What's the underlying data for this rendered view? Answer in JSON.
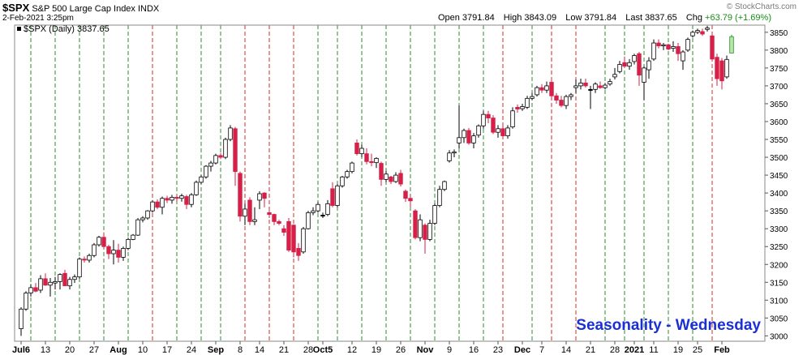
{
  "header": {
    "symbol": "$SPX",
    "description": "S&P 500 Large Cap Index INDX",
    "datetime": "2-Feb-2021 3:25pm",
    "open_label": "Open",
    "open": "3791.84",
    "high_label": "High",
    "high": "3843.09",
    "low_label": "Low",
    "low": "3791.84",
    "last_label": "Last",
    "last": "3837.65",
    "chg_label": "Chg",
    "chg": "+63.79 (+1.69%)",
    "chg_color": "#1a8c1a",
    "watermark": "© StockCharts.com"
  },
  "legend": {
    "text": "$SPX (Daily) 3837.65"
  },
  "chart_data": {
    "type": "candlestick",
    "title": "Seasonality - Wednesday",
    "title_color": "#1a2fd6",
    "y_ticks": [
      3000,
      3050,
      3100,
      3150,
      3200,
      3250,
      3300,
      3350,
      3400,
      3450,
      3500,
      3550,
      3600,
      3650,
      3700,
      3750,
      3800,
      3850
    ],
    "ylim": [
      2985,
      3870
    ],
    "y_axis_side": "right",
    "x_tick_labels": [
      {
        "day": 0,
        "label": "Jul6",
        "bold": true
      },
      {
        "day": 5,
        "label": "13"
      },
      {
        "day": 10,
        "label": "20"
      },
      {
        "day": 15,
        "label": "27"
      },
      {
        "day": 20,
        "label": "Aug",
        "bold": true
      },
      {
        "day": 25,
        "label": "10"
      },
      {
        "day": 30,
        "label": "17"
      },
      {
        "day": 35,
        "label": "24"
      },
      {
        "day": 40,
        "label": "Sep",
        "bold": true
      },
      {
        "day": 45,
        "label": "8"
      },
      {
        "day": 49,
        "label": "14"
      },
      {
        "day": 54,
        "label": "21"
      },
      {
        "day": 59,
        "label": "28"
      },
      {
        "day": 62,
        "label": "Oct5",
        "bold": true
      },
      {
        "day": 68,
        "label": "12"
      },
      {
        "day": 73,
        "label": "19"
      },
      {
        "day": 78,
        "label": "26"
      },
      {
        "day": 83,
        "label": "Nov",
        "bold": true
      },
      {
        "day": 88,
        "label": "9"
      },
      {
        "day": 93,
        "label": "16"
      },
      {
        "day": 98,
        "label": "23"
      },
      {
        "day": 103,
        "label": "Dec",
        "bold": true
      },
      {
        "day": 107,
        "label": "7"
      },
      {
        "day": 112,
        "label": "14"
      },
      {
        "day": 117,
        "label": "21"
      },
      {
        "day": 122,
        "label": "28"
      },
      {
        "day": 126,
        "label": "2021",
        "bold": true
      },
      {
        "day": 130,
        "label": "11"
      },
      {
        "day": 135,
        "label": "19"
      },
      {
        "day": 139,
        "label": "25"
      },
      {
        "day": 144,
        "label": "Feb",
        "bold": true
      }
    ],
    "green_wednesdays": [
      2,
      7,
      12,
      17,
      22,
      32,
      37,
      41,
      61,
      65,
      70,
      75,
      80,
      85,
      90,
      95,
      105,
      120,
      124,
      128,
      133,
      138
    ],
    "red_wednesdays": [
      27,
      46,
      51,
      56,
      99,
      109,
      114,
      142
    ],
    "candles": [
      {
        "o": 3020,
        "h": 3080,
        "l": 3000,
        "c": 3075
      },
      {
        "o": 3075,
        "h": 3125,
        "l": 3070,
        "c": 3120
      },
      {
        "o": 3120,
        "h": 3145,
        "l": 3110,
        "c": 3135
      },
      {
        "o": 3135,
        "h": 3148,
        "l": 3122,
        "c": 3125
      },
      {
        "o": 3128,
        "h": 3170,
        "l": 3120,
        "c": 3160
      },
      {
        "o": 3160,
        "h": 3175,
        "l": 3140,
        "c": 3142
      },
      {
        "o": 3142,
        "h": 3162,
        "l": 3110,
        "c": 3150
      },
      {
        "o": 3148,
        "h": 3165,
        "l": 3130,
        "c": 3152
      },
      {
        "o": 3152,
        "h": 3175,
        "l": 3130,
        "c": 3172
      },
      {
        "o": 3175,
        "h": 3185,
        "l": 3140,
        "c": 3140
      },
      {
        "o": 3140,
        "h": 3165,
        "l": 3130,
        "c": 3158
      },
      {
        "o": 3158,
        "h": 3172,
        "l": 3148,
        "c": 3165
      },
      {
        "o": 3165,
        "h": 3220,
        "l": 3160,
        "c": 3215
      },
      {
        "o": 3215,
        "h": 3222,
        "l": 3205,
        "c": 3212
      },
      {
        "o": 3212,
        "h": 3230,
        "l": 3205,
        "c": 3225
      },
      {
        "o": 3225,
        "h": 3260,
        "l": 3220,
        "c": 3255
      },
      {
        "o": 3255,
        "h": 3280,
        "l": 3250,
        "c": 3276
      },
      {
        "o": 3276,
        "h": 3290,
        "l": 3245,
        "c": 3250
      },
      {
        "o": 3250,
        "h": 3255,
        "l": 3215,
        "c": 3230
      },
      {
        "o": 3230,
        "h": 3268,
        "l": 3200,
        "c": 3240
      },
      {
        "o": 3240,
        "h": 3258,
        "l": 3205,
        "c": 3220
      },
      {
        "o": 3220,
        "h": 3250,
        "l": 3210,
        "c": 3245
      },
      {
        "o": 3245,
        "h": 3275,
        "l": 3240,
        "c": 3270
      },
      {
        "o": 3270,
        "h": 3285,
        "l": 3268,
        "c": 3282
      },
      {
        "o": 3282,
        "h": 3330,
        "l": 3280,
        "c": 3325
      },
      {
        "o": 3325,
        "h": 3335,
        "l": 3318,
        "c": 3330
      },
      {
        "o": 3330,
        "h": 3352,
        "l": 3325,
        "c": 3350
      },
      {
        "o": 3350,
        "h": 3380,
        "l": 3345,
        "c": 3375
      },
      {
        "o": 3375,
        "h": 3382,
        "l": 3355,
        "c": 3360
      },
      {
        "o": 3360,
        "h": 3390,
        "l": 3340,
        "c": 3385
      },
      {
        "o": 3385,
        "h": 3392,
        "l": 3372,
        "c": 3380
      },
      {
        "o": 3380,
        "h": 3395,
        "l": 3370,
        "c": 3388
      },
      {
        "o": 3388,
        "h": 3395,
        "l": 3375,
        "c": 3385
      },
      {
        "o": 3385,
        "h": 3398,
        "l": 3376,
        "c": 3392
      },
      {
        "o": 3390,
        "h": 3395,
        "l": 3355,
        "c": 3368
      },
      {
        "o": 3368,
        "h": 3400,
        "l": 3360,
        "c": 3395
      },
      {
        "o": 3395,
        "h": 3435,
        "l": 3392,
        "c": 3430
      },
      {
        "o": 3430,
        "h": 3450,
        "l": 3425,
        "c": 3445
      },
      {
        "o": 3445,
        "h": 3478,
        "l": 3440,
        "c": 3475
      },
      {
        "o": 3475,
        "h": 3490,
        "l": 3460,
        "c": 3484
      },
      {
        "o": 3484,
        "h": 3510,
        "l": 3480,
        "c": 3505
      },
      {
        "o": 3505,
        "h": 3512,
        "l": 3495,
        "c": 3500
      },
      {
        "o": 3500,
        "h": 3555,
        "l": 3495,
        "c": 3550
      },
      {
        "o": 3550,
        "h": 3590,
        "l": 3545,
        "c": 3582
      },
      {
        "o": 3580,
        "h": 3585,
        "l": 3420,
        "c": 3460
      },
      {
        "o": 3455,
        "h": 3460,
        "l": 3320,
        "c": 3335
      },
      {
        "o": 3335,
        "h": 3370,
        "l": 3310,
        "c": 3355
      },
      {
        "o": 3380,
        "h": 3388,
        "l": 3310,
        "c": 3320
      },
      {
        "o": 3320,
        "h": 3360,
        "l": 3310,
        "c": 3325
      },
      {
        "o": 3380,
        "h": 3405,
        "l": 3355,
        "c": 3398
      },
      {
        "o": 3400,
        "h": 3402,
        "l": 3360,
        "c": 3385
      },
      {
        "o": 3345,
        "h": 3350,
        "l": 3330,
        "c": 3340
      },
      {
        "o": 3340,
        "h": 3342,
        "l": 3310,
        "c": 3320
      },
      {
        "o": 3320,
        "h": 3325,
        "l": 3310,
        "c": 3315
      },
      {
        "o": 3300,
        "h": 3310,
        "l": 3280,
        "c": 3290
      },
      {
        "o": 3320,
        "h": 3330,
        "l": 3235,
        "c": 3240
      },
      {
        "o": 3310,
        "h": 3312,
        "l": 3220,
        "c": 3235
      },
      {
        "o": 3245,
        "h": 3260,
        "l": 3210,
        "c": 3225
      },
      {
        "o": 3235,
        "h": 3305,
        "l": 3230,
        "c": 3300
      },
      {
        "o": 3300,
        "h": 3350,
        "l": 3298,
        "c": 3345
      },
      {
        "o": 3345,
        "h": 3360,
        "l": 3338,
        "c": 3350
      },
      {
        "o": 3350,
        "h": 3375,
        "l": 3345,
        "c": 3368
      },
      {
        "o": 3336,
        "h": 3345,
        "l": 3330,
        "c": 3338
      },
      {
        "o": 3340,
        "h": 3380,
        "l": 3335,
        "c": 3370
      },
      {
        "o": 3412,
        "h": 3430,
        "l": 3360,
        "c": 3365
      },
      {
        "o": 3365,
        "h": 3425,
        "l": 3360,
        "c": 3420
      },
      {
        "o": 3420,
        "h": 3448,
        "l": 3415,
        "c": 3445
      },
      {
        "o": 3445,
        "h": 3465,
        "l": 3440,
        "c": 3460
      },
      {
        "o": 3460,
        "h": 3488,
        "l": 3455,
        "c": 3484
      },
      {
        "o": 3540,
        "h": 3550,
        "l": 3505,
        "c": 3510
      },
      {
        "o": 3510,
        "h": 3535,
        "l": 3500,
        "c": 3525
      },
      {
        "o": 3510,
        "h": 3525,
        "l": 3480,
        "c": 3488
      },
      {
        "o": 3488,
        "h": 3510,
        "l": 3475,
        "c": 3485
      },
      {
        "o": 3485,
        "h": 3500,
        "l": 3470,
        "c": 3497
      },
      {
        "o": 3483,
        "h": 3488,
        "l": 3420,
        "c": 3438
      },
      {
        "o": 3438,
        "h": 3462,
        "l": 3430,
        "c": 3453
      },
      {
        "o": 3445,
        "h": 3448,
        "l": 3425,
        "c": 3432
      },
      {
        "o": 3432,
        "h": 3458,
        "l": 3428,
        "c": 3450
      },
      {
        "o": 3455,
        "h": 3465,
        "l": 3418,
        "c": 3425
      },
      {
        "o": 3405,
        "h": 3410,
        "l": 3375,
        "c": 3385
      },
      {
        "o": 3385,
        "h": 3395,
        "l": 3360,
        "c": 3378
      },
      {
        "o": 3350,
        "h": 3355,
        "l": 3270,
        "c": 3275
      },
      {
        "o": 3275,
        "h": 3340,
        "l": 3265,
        "c": 3325
      },
      {
        "o": 3310,
        "h": 3315,
        "l": 3230,
        "c": 3270
      },
      {
        "o": 3270,
        "h": 3325,
        "l": 3265,
        "c": 3315
      },
      {
        "o": 3315,
        "h": 3370,
        "l": 3310,
        "c": 3365
      },
      {
        "o": 3365,
        "h": 3420,
        "l": 3360,
        "c": 3410
      },
      {
        "o": 3410,
        "h": 3435,
        "l": 3405,
        "c": 3432
      },
      {
        "o": 3490,
        "h": 3520,
        "l": 3485,
        "c": 3512
      },
      {
        "o": 3512,
        "h": 3522,
        "l": 3500,
        "c": 3515
      },
      {
        "o": 3540,
        "h": 3645,
        "l": 3525,
        "c": 3555
      },
      {
        "o": 3555,
        "h": 3580,
        "l": 3540,
        "c": 3575
      },
      {
        "o": 3575,
        "h": 3582,
        "l": 3535,
        "c": 3540
      },
      {
        "o": 3540,
        "h": 3568,
        "l": 3525,
        "c": 3560
      },
      {
        "o": 3562,
        "h": 3592,
        "l": 3555,
        "c": 3588
      },
      {
        "o": 3588,
        "h": 3630,
        "l": 3580,
        "c": 3620
      },
      {
        "o": 3620,
        "h": 3630,
        "l": 3595,
        "c": 3610
      },
      {
        "o": 3610,
        "h": 3618,
        "l": 3565,
        "c": 3570
      },
      {
        "o": 3570,
        "h": 3590,
        "l": 3555,
        "c": 3580
      },
      {
        "o": 3580,
        "h": 3588,
        "l": 3555,
        "c": 3560
      },
      {
        "o": 3560,
        "h": 3590,
        "l": 3552,
        "c": 3582
      },
      {
        "o": 3585,
        "h": 3640,
        "l": 3580,
        "c": 3630
      },
      {
        "o": 3640,
        "h": 3648,
        "l": 3625,
        "c": 3635
      },
      {
        "o": 3636,
        "h": 3650,
        "l": 3630,
        "c": 3642
      },
      {
        "o": 3640,
        "h": 3672,
        "l": 3635,
        "c": 3665
      },
      {
        "o": 3665,
        "h": 3680,
        "l": 3660,
        "c": 3670
      },
      {
        "o": 3675,
        "h": 3700,
        "l": 3670,
        "c": 3695
      },
      {
        "o": 3695,
        "h": 3705,
        "l": 3680,
        "c": 3688
      },
      {
        "o": 3688,
        "h": 3712,
        "l": 3680,
        "c": 3700
      },
      {
        "o": 3710,
        "h": 3715,
        "l": 3660,
        "c": 3672
      },
      {
        "o": 3672,
        "h": 3680,
        "l": 3650,
        "c": 3660
      },
      {
        "o": 3660,
        "h": 3672,
        "l": 3640,
        "c": 3645
      },
      {
        "o": 3645,
        "h": 3675,
        "l": 3635,
        "c": 3670
      },
      {
        "o": 3670,
        "h": 3680,
        "l": 3660,
        "c": 3675
      },
      {
        "o": 3695,
        "h": 3718,
        "l": 3680,
        "c": 3700
      },
      {
        "o": 3700,
        "h": 3720,
        "l": 3690,
        "c": 3708
      },
      {
        "o": 3708,
        "h": 3720,
        "l": 3695,
        "c": 3700
      },
      {
        "o": 3690,
        "h": 3700,
        "l": 3635,
        "c": 3690
      },
      {
        "o": 3690,
        "h": 3710,
        "l": 3680,
        "c": 3705
      },
      {
        "o": 3700,
        "h": 3712,
        "l": 3692,
        "c": 3695
      },
      {
        "o": 3695,
        "h": 3708,
        "l": 3690,
        "c": 3702
      },
      {
        "o": 3705,
        "h": 3720,
        "l": 3700,
        "c": 3712
      },
      {
        "o": 3725,
        "h": 3750,
        "l": 3718,
        "c": 3732
      },
      {
        "o": 3740,
        "h": 3770,
        "l": 3735,
        "c": 3760
      },
      {
        "o": 3765,
        "h": 3782,
        "l": 3750,
        "c": 3755
      },
      {
        "o": 3755,
        "h": 3775,
        "l": 3745,
        "c": 3765
      },
      {
        "o": 3768,
        "h": 3790,
        "l": 3760,
        "c": 3785
      },
      {
        "o": 3790,
        "h": 3795,
        "l": 3700,
        "c": 3730
      },
      {
        "o": 3710,
        "h": 3755,
        "l": 3660,
        "c": 3750
      },
      {
        "o": 3745,
        "h": 3780,
        "l": 3720,
        "c": 3770
      },
      {
        "o": 3775,
        "h": 3830,
        "l": 3770,
        "c": 3820
      },
      {
        "o": 3820,
        "h": 3830,
        "l": 3805,
        "c": 3812
      },
      {
        "o": 3812,
        "h": 3820,
        "l": 3800,
        "c": 3815
      },
      {
        "o": 3815,
        "h": 3818,
        "l": 3800,
        "c": 3803
      },
      {
        "o": 3805,
        "h": 3825,
        "l": 3795,
        "c": 3810
      },
      {
        "o": 3810,
        "h": 3820,
        "l": 3770,
        "c": 3790
      },
      {
        "o": 3770,
        "h": 3800,
        "l": 3745,
        "c": 3795
      },
      {
        "o": 3800,
        "h": 3835,
        "l": 3795,
        "c": 3830
      },
      {
        "o": 3840,
        "h": 3855,
        "l": 3835,
        "c": 3850
      },
      {
        "o": 3850,
        "h": 3860,
        "l": 3845,
        "c": 3855
      },
      {
        "o": 3852,
        "h": 3860,
        "l": 3840,
        "c": 3845
      },
      {
        "o": 3858,
        "h": 3868,
        "l": 3852,
        "c": 3862
      },
      {
        "o": 3840,
        "h": 3845,
        "l": 3770,
        "c": 3775
      },
      {
        "o": 3780,
        "h": 3790,
        "l": 3700,
        "c": 3720
      },
      {
        "o": 3770,
        "h": 3778,
        "l": 3690,
        "c": 3714
      },
      {
        "o": 3725,
        "h": 3785,
        "l": 3720,
        "c": 3774
      },
      {
        "o": 3791.84,
        "h": 3843.09,
        "l": 3791.84,
        "c": 3837.65
      }
    ]
  }
}
